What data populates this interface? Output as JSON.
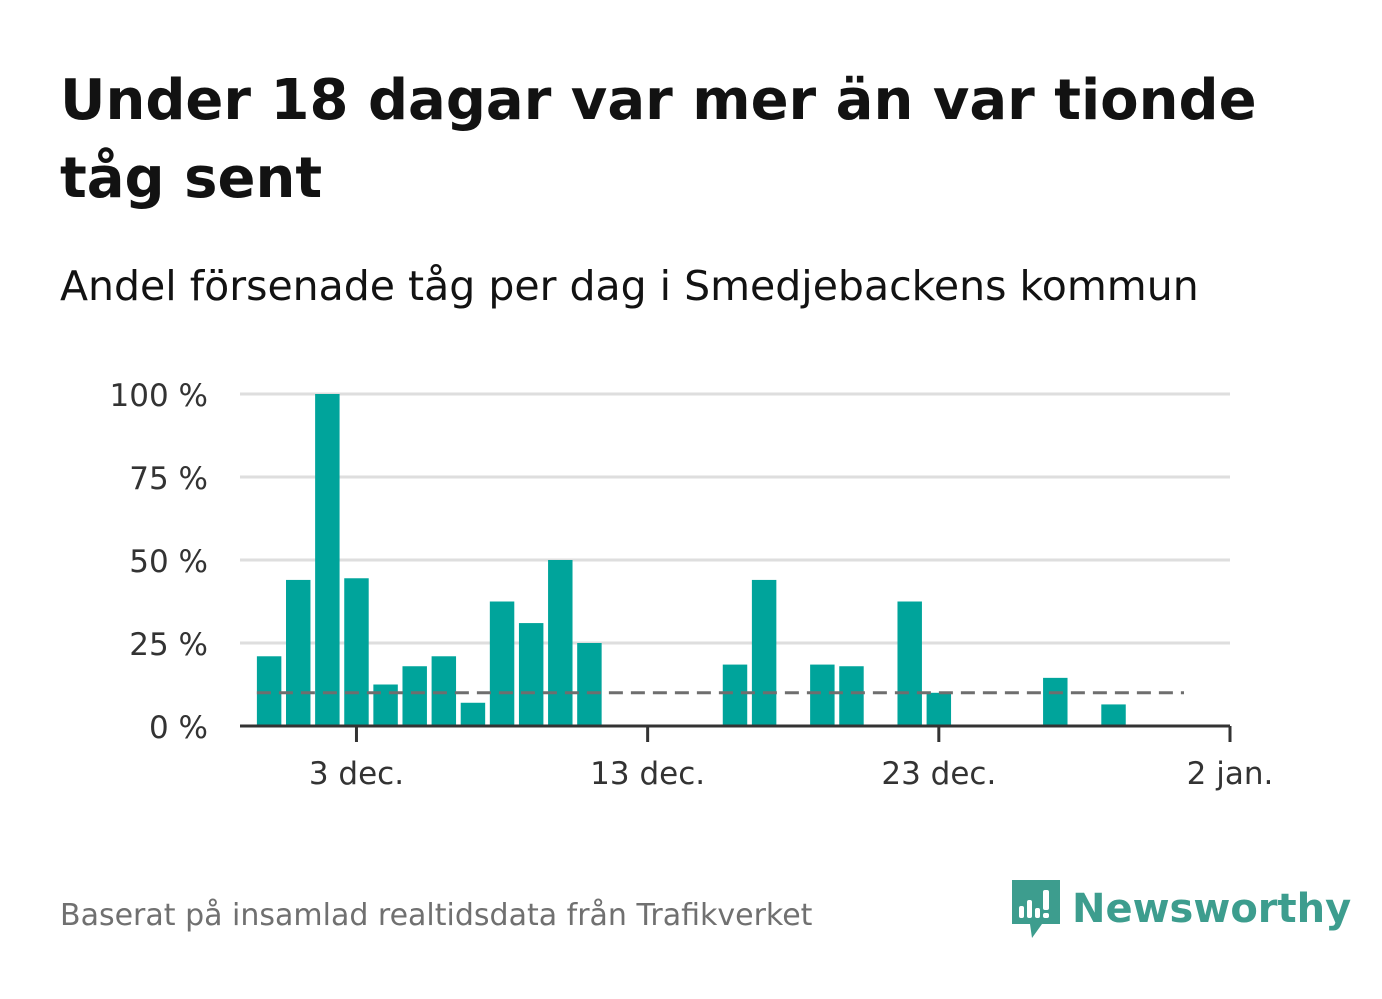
{
  "title": "Under 18 dagar var mer än var tionde tåg sent",
  "subtitle": "Andel försenade tåg per dag i Smedjebackens kommun",
  "footer": "Baserat på insamlad realtidsdata från Trafikverket",
  "logo": {
    "text": "Newsworthy",
    "icon": "newsworthy-logo-icon"
  },
  "colors": {
    "bar": "#00a49b",
    "reference_line": "#6e6e6e",
    "grid": "#dedede",
    "axis": "#333333",
    "logo": "#3d9d8e"
  },
  "chart_data": {
    "type": "bar",
    "x": [
      "2022-11-30",
      "2022-12-01",
      "2022-12-02",
      "2022-12-03",
      "2022-12-04",
      "2022-12-05",
      "2022-12-06",
      "2022-12-07",
      "2022-12-08",
      "2022-12-09",
      "2022-12-10",
      "2022-12-11",
      "2022-12-12",
      "2022-12-13",
      "2022-12-14",
      "2022-12-15",
      "2022-12-16",
      "2022-12-17",
      "2022-12-18",
      "2022-12-19",
      "2022-12-20",
      "2022-12-21",
      "2022-12-22",
      "2022-12-23",
      "2022-12-24",
      "2022-12-25",
      "2022-12-26",
      "2022-12-27",
      "2022-12-28",
      "2022-12-29",
      "2022-12-30",
      "2022-12-31",
      "2023-01-01"
    ],
    "values": [
      21,
      44,
      100,
      44.5,
      12.5,
      18,
      21,
      7,
      37.5,
      31,
      50,
      25,
      null,
      null,
      null,
      null,
      18.5,
      44,
      null,
      18.5,
      18,
      null,
      37.5,
      10,
      null,
      null,
      null,
      14.5,
      null,
      6.5,
      null,
      null,
      null
    ],
    "reference_line": {
      "value": 10,
      "style": "dashed"
    },
    "y_ticks": [
      "0 %",
      "25 %",
      "50 %",
      "75 %",
      "100 %"
    ],
    "y_tick_values": [
      0,
      25,
      50,
      75,
      100
    ],
    "x_ticks": [
      "3 dec.",
      "13 dec.",
      "23 dec.",
      "2 jan."
    ],
    "x_tick_dates": [
      "2022-12-03",
      "2022-12-13",
      "2022-12-23",
      "2023-01-02"
    ],
    "ylim": [
      0,
      100
    ],
    "xlim": [
      "2022-11-29",
      "2023-01-02"
    ],
    "grid": true,
    "legend": "none"
  }
}
